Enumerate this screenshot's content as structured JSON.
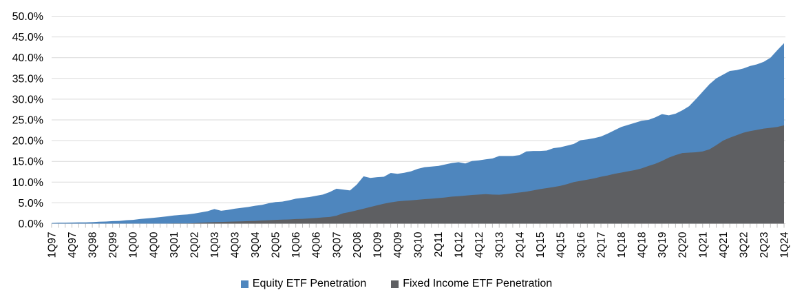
{
  "chart_data": {
    "type": "area",
    "overlapping": true,
    "title": "",
    "grid": true,
    "legend_position": "bottom",
    "label_every": 3,
    "x_tick_labels": [
      "1Q97",
      "4Q97",
      "3Q98",
      "2Q99",
      "1Q00",
      "4Q00",
      "3Q01",
      "2Q02",
      "1Q03",
      "4Q03",
      "3Q04",
      "2Q05",
      "1Q06",
      "4Q06",
      "3Q07",
      "2Q08",
      "1Q09",
      "4Q09",
      "3Q10",
      "2Q11",
      "1Q12",
      "4Q12",
      "3Q13",
      "2Q14",
      "1Q15",
      "4Q15",
      "3Q16",
      "2Q17",
      "1Q18",
      "4Q18",
      "3Q19",
      "2Q20",
      "1Q21",
      "4Q21",
      "3Q22",
      "2Q23",
      "1Q24"
    ],
    "y_axis": {
      "min": 0,
      "max": 50,
      "step": 5,
      "tick_labels": [
        "0.0%",
        "5.0%",
        "10.0%",
        "15.0%",
        "20.0%",
        "25.0%",
        "30.0%",
        "35.0%",
        "40.0%",
        "45.0%",
        "50.0%"
      ]
    },
    "series": [
      {
        "name": "Equity ETF Penetration",
        "color": "#4E86BE",
        "values": [
          0.15,
          0.2,
          0.2,
          0.25,
          0.3,
          0.3,
          0.35,
          0.45,
          0.5,
          0.6,
          0.65,
          0.8,
          0.9,
          1.1,
          1.25,
          1.4,
          1.55,
          1.75,
          1.95,
          2.1,
          2.2,
          2.4,
          2.7,
          3.0,
          3.5,
          3.1,
          3.3,
          3.6,
          3.8,
          4.0,
          4.3,
          4.5,
          4.9,
          5.2,
          5.3,
          5.6,
          6.0,
          6.2,
          6.4,
          6.7,
          7.0,
          7.6,
          8.4,
          8.2,
          8.0,
          9.4,
          11.4,
          11.0,
          11.2,
          11.3,
          12.2,
          12.0,
          12.25,
          12.6,
          13.2,
          13.6,
          13.75,
          13.9,
          14.25,
          14.6,
          14.8,
          14.5,
          15.1,
          15.25,
          15.5,
          15.7,
          16.3,
          16.3,
          16.3,
          16.5,
          17.4,
          17.5,
          17.5,
          17.6,
          18.2,
          18.4,
          18.8,
          19.2,
          20.1,
          20.3,
          20.6,
          21.0,
          21.7,
          22.5,
          23.3,
          23.8,
          24.3,
          24.8,
          25.0,
          25.6,
          26.4,
          26.1,
          26.5,
          27.3,
          28.3,
          30.0,
          31.8,
          33.6,
          35.0,
          35.9,
          36.8,
          37.0,
          37.4,
          38.0,
          38.4,
          39.0,
          40.0,
          41.8,
          43.5
        ]
      },
      {
        "name": "Fixed Income ETF Penetration",
        "color": "#5E5F62",
        "values": [
          0,
          0,
          0,
          0,
          0,
          0,
          0,
          0,
          0,
          0,
          0,
          0,
          0,
          0,
          0,
          0,
          0,
          0,
          0.05,
          0.05,
          0.05,
          0.1,
          0.2,
          0.3,
          0.35,
          0.4,
          0.45,
          0.5,
          0.55,
          0.6,
          0.65,
          0.75,
          0.8,
          0.9,
          0.95,
          1.0,
          1.1,
          1.15,
          1.25,
          1.35,
          1.5,
          1.6,
          1.9,
          2.5,
          2.8,
          3.2,
          3.6,
          4.0,
          4.4,
          4.8,
          5.1,
          5.35,
          5.5,
          5.6,
          5.75,
          5.9,
          6.0,
          6.15,
          6.3,
          6.5,
          6.6,
          6.75,
          6.9,
          7.0,
          7.1,
          7.0,
          6.95,
          7.1,
          7.3,
          7.5,
          7.7,
          8.0,
          8.3,
          8.55,
          8.8,
          9.1,
          9.5,
          10.0,
          10.3,
          10.6,
          10.9,
          11.3,
          11.6,
          12.0,
          12.3,
          12.6,
          12.9,
          13.3,
          13.9,
          14.4,
          15.1,
          15.9,
          16.5,
          17.0,
          17.1,
          17.2,
          17.4,
          17.9,
          18.9,
          20.0,
          20.7,
          21.3,
          21.9,
          22.3,
          22.6,
          22.9,
          23.1,
          23.3,
          23.7
        ]
      }
    ]
  },
  "legend": {
    "items": [
      {
        "label": "Equity ETF Penetration",
        "color": "#4E86BE"
      },
      {
        "label": "Fixed Income ETF Penetration",
        "color": "#5E5F62"
      }
    ]
  },
  "style": {
    "gridline_color": "#d9d9d9",
    "tick_color": "#bfbfbf",
    "background": "#ffffff"
  }
}
